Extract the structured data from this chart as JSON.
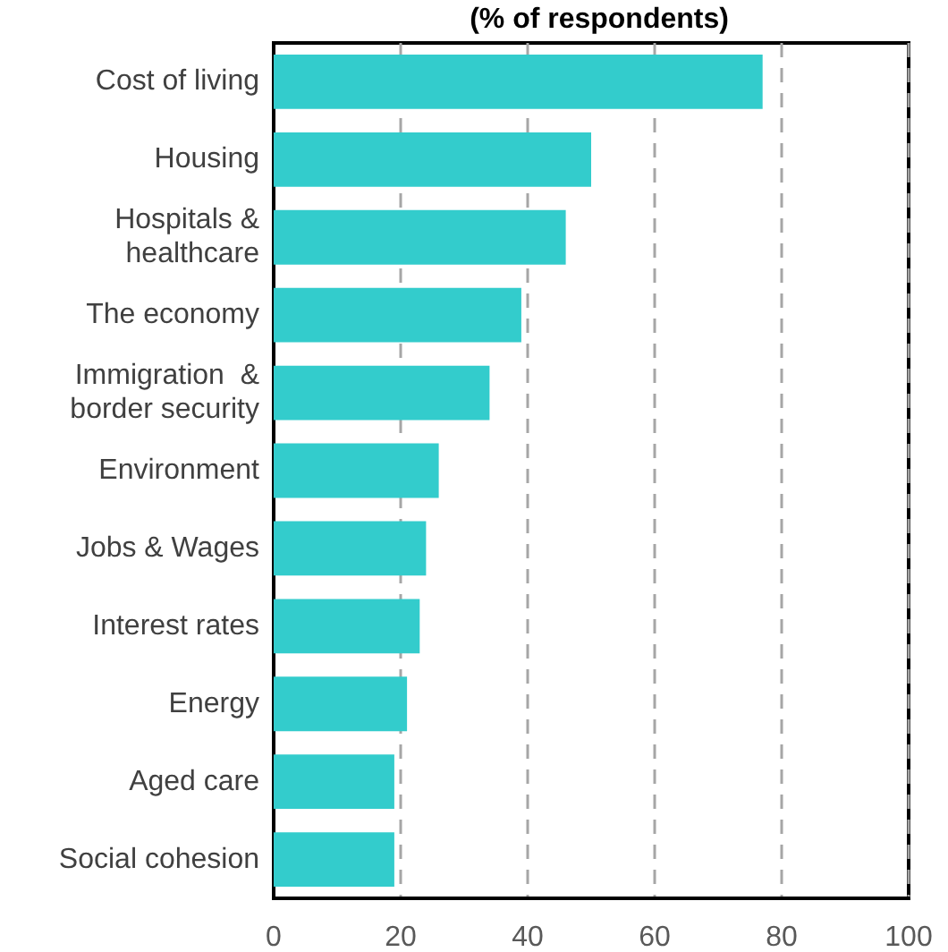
{
  "chart_data": {
    "type": "bar",
    "orientation": "horizontal",
    "title": "(% of respondents)",
    "categories": [
      "Cost of living",
      "Housing",
      "Hospitals &\nhealthcare",
      "The economy",
      "Immigration  &\nborder security",
      "Environment",
      "Jobs & Wages",
      "Interest rates",
      "Energy",
      "Aged care",
      "Social cohesion"
    ],
    "values": [
      77,
      50,
      46,
      39,
      34,
      26,
      24,
      23,
      21,
      19,
      19
    ],
    "color": "#33cccc",
    "xlim": [
      0,
      100
    ],
    "xticks": [
      0,
      20,
      40,
      60,
      80,
      100
    ],
    "grid": "x"
  }
}
